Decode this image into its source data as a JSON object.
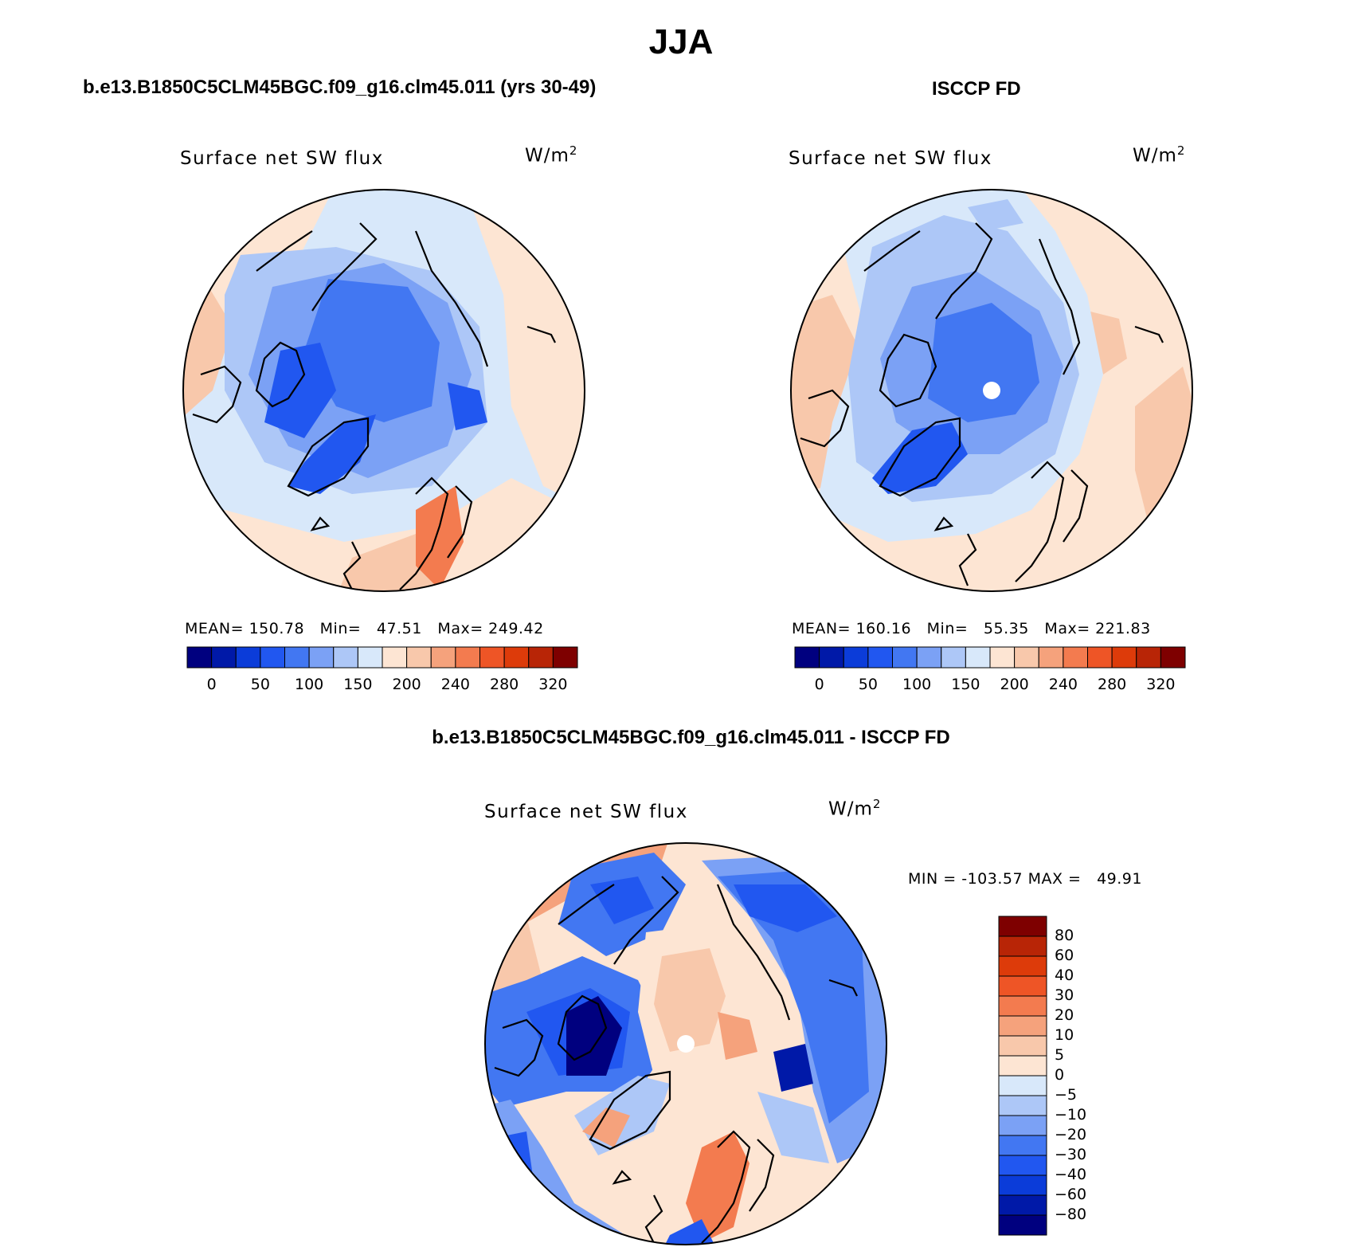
{
  "header": {
    "title": "JJA",
    "left_case": "b.e13.B1850C5CLM45BGC.f09_g16.clm45.011 (yrs 30-49)",
    "right_case": "ISCCP FD",
    "diff_case": "b.e13.B1850C5CLM45BGC.f09_g16.clm45.011 - ISCCP FD"
  },
  "panels": {
    "model": {
      "variable": "Surface net SW flux",
      "units": "W/m",
      "units_sup": "2",
      "stats": "MEAN= 150.78   Min=   47.51   Max= 249.42"
    },
    "obs": {
      "variable": "Surface net SW flux",
      "units": "W/m",
      "units_sup": "2",
      "stats": "MEAN= 160.16   Min=   55.35   Max= 221.83"
    },
    "diff": {
      "variable": "Surface net SW flux",
      "units": "W/m",
      "units_sup": "2",
      "stats": "MIN = -103.57 MAX =   49.91"
    }
  },
  "colorbars": {
    "abs_colors": [
      "#00007f",
      "#0019a8",
      "#0b3cd9",
      "#2157f0",
      "#4277f2",
      "#7ba1f5",
      "#adc7f7",
      "#d8e8fa",
      "#fde5d3",
      "#f8c8ab",
      "#f5a27c",
      "#f37b4f",
      "#ee5526",
      "#dd3b0a",
      "#b82506",
      "#7e0000"
    ],
    "abs_labels": [
      "0",
      "50",
      "100",
      "150",
      "200",
      "240",
      "280",
      "320"
    ],
    "diff_colors_top_to_bottom": [
      "#7e0000",
      "#b82506",
      "#dd3b0a",
      "#ee5526",
      "#f37b4f",
      "#f5a27c",
      "#f8c8ab",
      "#fde5d3",
      "#d8e8fa",
      "#adc7f7",
      "#7ba1f5",
      "#4277f2",
      "#2157f0",
      "#0b3cd9",
      "#0019a8",
      "#00007f"
    ],
    "diff_labels": [
      "80",
      "60",
      "40",
      "30",
      "20",
      "10",
      "5",
      "0",
      "−5",
      "−10",
      "−20",
      "−30",
      "−40",
      "−60",
      "−80"
    ]
  }
}
